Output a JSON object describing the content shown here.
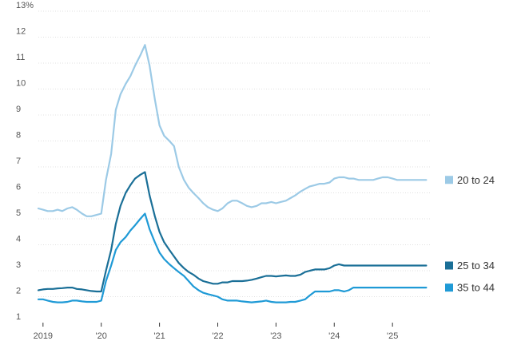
{
  "chart_data": {
    "type": "line",
    "title": "",
    "xlabel": "",
    "ylabel": "",
    "y_unit_label": "13%",
    "ylim": [
      1,
      13
    ],
    "xlim": [
      2018.92,
      2025.67
    ],
    "y_ticks": [
      {
        "value": 13,
        "label": "13%"
      },
      {
        "value": 12,
        "label": "12"
      },
      {
        "value": 11,
        "label": "11"
      },
      {
        "value": 10,
        "label": "10"
      },
      {
        "value": 9,
        "label": "9"
      },
      {
        "value": 8,
        "label": "8"
      },
      {
        "value": 7,
        "label": "7"
      },
      {
        "value": 6,
        "label": "6"
      },
      {
        "value": 5,
        "label": "5"
      },
      {
        "value": 4,
        "label": "4"
      },
      {
        "value": 3,
        "label": "3"
      },
      {
        "value": 2,
        "label": "2"
      },
      {
        "value": 1,
        "label": "1"
      }
    ],
    "x_ticks": [
      {
        "value": 2019,
        "label": "2019"
      },
      {
        "value": 2020,
        "label": "'20"
      },
      {
        "value": 2021,
        "label": "'21"
      },
      {
        "value": 2022,
        "label": "'22"
      },
      {
        "value": 2023,
        "label": "'23"
      },
      {
        "value": 2024,
        "label": "'24"
      },
      {
        "value": 2025,
        "label": "'25"
      }
    ],
    "grid": "horizontal",
    "legend_placement": "right",
    "series": [
      {
        "name": "20 to 24",
        "color": "#9ccae6",
        "x": [
          2018.92,
          2019.0,
          2019.08,
          2019.17,
          2019.25,
          2019.33,
          2019.42,
          2019.5,
          2019.58,
          2019.67,
          2019.75,
          2019.83,
          2019.92,
          2020.0,
          2020.08,
          2020.17,
          2020.25,
          2020.33,
          2020.42,
          2020.5,
          2020.58,
          2020.67,
          2020.75,
          2020.83,
          2020.92,
          2021.0,
          2021.08,
          2021.17,
          2021.25,
          2021.33,
          2021.42,
          2021.5,
          2021.58,
          2021.67,
          2021.75,
          2021.83,
          2021.92,
          2022.0,
          2022.08,
          2022.17,
          2022.25,
          2022.33,
          2022.42,
          2022.5,
          2022.58,
          2022.67,
          2022.75,
          2022.83,
          2022.92,
          2023.0,
          2023.08,
          2023.17,
          2023.25,
          2023.33,
          2023.42,
          2023.5,
          2023.58,
          2023.67,
          2023.75,
          2023.83,
          2023.92,
          2024.0,
          2024.08,
          2024.17,
          2024.25,
          2024.33,
          2024.42,
          2024.5,
          2024.58,
          2024.67,
          2024.75,
          2024.83,
          2024.92,
          2025.0,
          2025.08,
          2025.17,
          2025.25,
          2025.33,
          2025.42,
          2025.5,
          2025.58
        ],
        "values": [
          5.4,
          5.35,
          5.3,
          5.3,
          5.35,
          5.3,
          5.4,
          5.45,
          5.35,
          5.2,
          5.1,
          5.1,
          5.15,
          5.2,
          6.5,
          7.5,
          9.2,
          9.8,
          10.2,
          10.5,
          10.9,
          11.3,
          11.7,
          10.9,
          9.6,
          8.6,
          8.2,
          8.0,
          7.8,
          7.0,
          6.5,
          6.2,
          6.0,
          5.8,
          5.6,
          5.45,
          5.35,
          5.3,
          5.4,
          5.6,
          5.7,
          5.7,
          5.6,
          5.5,
          5.45,
          5.5,
          5.6,
          5.6,
          5.65,
          5.6,
          5.65,
          5.7,
          5.8,
          5.9,
          6.05,
          6.15,
          6.25,
          6.3,
          6.35,
          6.35,
          6.4,
          6.55,
          6.6,
          6.6,
          6.55,
          6.55,
          6.5,
          6.5,
          6.5,
          6.5,
          6.55,
          6.6,
          6.6,
          6.55,
          6.5,
          6.5,
          6.5,
          6.5,
          6.5,
          6.5,
          6.5
        ]
      },
      {
        "name": "25 to 34",
        "color": "#1a6f97",
        "x": [
          2018.92,
          2019.0,
          2019.08,
          2019.17,
          2019.25,
          2019.33,
          2019.42,
          2019.5,
          2019.58,
          2019.67,
          2019.75,
          2019.83,
          2019.92,
          2020.0,
          2020.08,
          2020.17,
          2020.25,
          2020.33,
          2020.42,
          2020.5,
          2020.58,
          2020.67,
          2020.75,
          2020.83,
          2020.92,
          2021.0,
          2021.08,
          2021.17,
          2021.25,
          2021.33,
          2021.42,
          2021.5,
          2021.58,
          2021.67,
          2021.75,
          2021.83,
          2021.92,
          2022.0,
          2022.08,
          2022.17,
          2022.25,
          2022.33,
          2022.42,
          2022.5,
          2022.58,
          2022.67,
          2022.75,
          2022.83,
          2022.92,
          2023.0,
          2023.08,
          2023.17,
          2023.25,
          2023.33,
          2023.42,
          2023.5,
          2023.58,
          2023.67,
          2023.75,
          2023.83,
          2023.92,
          2024.0,
          2024.08,
          2024.17,
          2024.25,
          2024.33,
          2024.42,
          2024.5,
          2024.58,
          2024.67,
          2024.75,
          2024.83,
          2024.92,
          2025.0,
          2025.08,
          2025.17,
          2025.25,
          2025.33,
          2025.42,
          2025.5,
          2025.58
        ],
        "values": [
          2.25,
          2.28,
          2.3,
          2.3,
          2.32,
          2.33,
          2.35,
          2.35,
          2.3,
          2.28,
          2.25,
          2.22,
          2.2,
          2.2,
          3.0,
          3.8,
          4.8,
          5.5,
          6.0,
          6.3,
          6.55,
          6.7,
          6.8,
          5.9,
          5.1,
          4.5,
          4.1,
          3.8,
          3.55,
          3.3,
          3.1,
          2.95,
          2.85,
          2.7,
          2.6,
          2.55,
          2.5,
          2.5,
          2.55,
          2.55,
          2.6,
          2.6,
          2.6,
          2.62,
          2.65,
          2.7,
          2.75,
          2.8,
          2.8,
          2.78,
          2.8,
          2.82,
          2.8,
          2.8,
          2.85,
          2.95,
          3.0,
          3.05,
          3.05,
          3.05,
          3.1,
          3.2,
          3.25,
          3.2,
          3.2,
          3.2,
          3.2,
          3.2,
          3.2,
          3.2,
          3.2,
          3.2,
          3.2,
          3.2,
          3.2,
          3.2,
          3.2,
          3.2,
          3.2,
          3.2,
          3.2
        ]
      },
      {
        "name": "35 to 44",
        "color": "#1f9ad6",
        "x": [
          2018.92,
          2019.0,
          2019.08,
          2019.17,
          2019.25,
          2019.33,
          2019.42,
          2019.5,
          2019.58,
          2019.67,
          2019.75,
          2019.83,
          2019.92,
          2020.0,
          2020.08,
          2020.17,
          2020.25,
          2020.33,
          2020.42,
          2020.5,
          2020.58,
          2020.67,
          2020.75,
          2020.83,
          2020.92,
          2021.0,
          2021.08,
          2021.17,
          2021.25,
          2021.33,
          2021.42,
          2021.5,
          2021.58,
          2021.67,
          2021.75,
          2021.83,
          2021.92,
          2022.0,
          2022.08,
          2022.17,
          2022.25,
          2022.33,
          2022.42,
          2022.5,
          2022.58,
          2022.67,
          2022.75,
          2022.83,
          2022.92,
          2023.0,
          2023.08,
          2023.17,
          2023.25,
          2023.33,
          2023.42,
          2023.5,
          2023.58,
          2023.67,
          2023.75,
          2023.83,
          2023.92,
          2024.0,
          2024.08,
          2024.17,
          2024.25,
          2024.33,
          2024.42,
          2024.5,
          2024.58,
          2024.67,
          2024.75,
          2024.83,
          2024.92,
          2025.0,
          2025.08,
          2025.17,
          2025.25,
          2025.33,
          2025.42,
          2025.5,
          2025.58
        ],
        "values": [
          1.9,
          1.9,
          1.85,
          1.8,
          1.78,
          1.78,
          1.8,
          1.85,
          1.85,
          1.82,
          1.8,
          1.8,
          1.8,
          1.85,
          2.6,
          3.2,
          3.8,
          4.1,
          4.3,
          4.55,
          4.75,
          5.0,
          5.2,
          4.6,
          4.1,
          3.7,
          3.45,
          3.25,
          3.1,
          2.95,
          2.8,
          2.6,
          2.4,
          2.25,
          2.15,
          2.1,
          2.05,
          2.0,
          1.9,
          1.85,
          1.85,
          1.85,
          1.82,
          1.8,
          1.78,
          1.8,
          1.82,
          1.85,
          1.8,
          1.78,
          1.78,
          1.78,
          1.8,
          1.8,
          1.85,
          1.9,
          2.05,
          2.2,
          2.2,
          2.2,
          2.2,
          2.25,
          2.25,
          2.2,
          2.25,
          2.35,
          2.35,
          2.35,
          2.35,
          2.35,
          2.35,
          2.35,
          2.35,
          2.35,
          2.35,
          2.35,
          2.35,
          2.35,
          2.35,
          2.35,
          2.35
        ]
      }
    ]
  }
}
